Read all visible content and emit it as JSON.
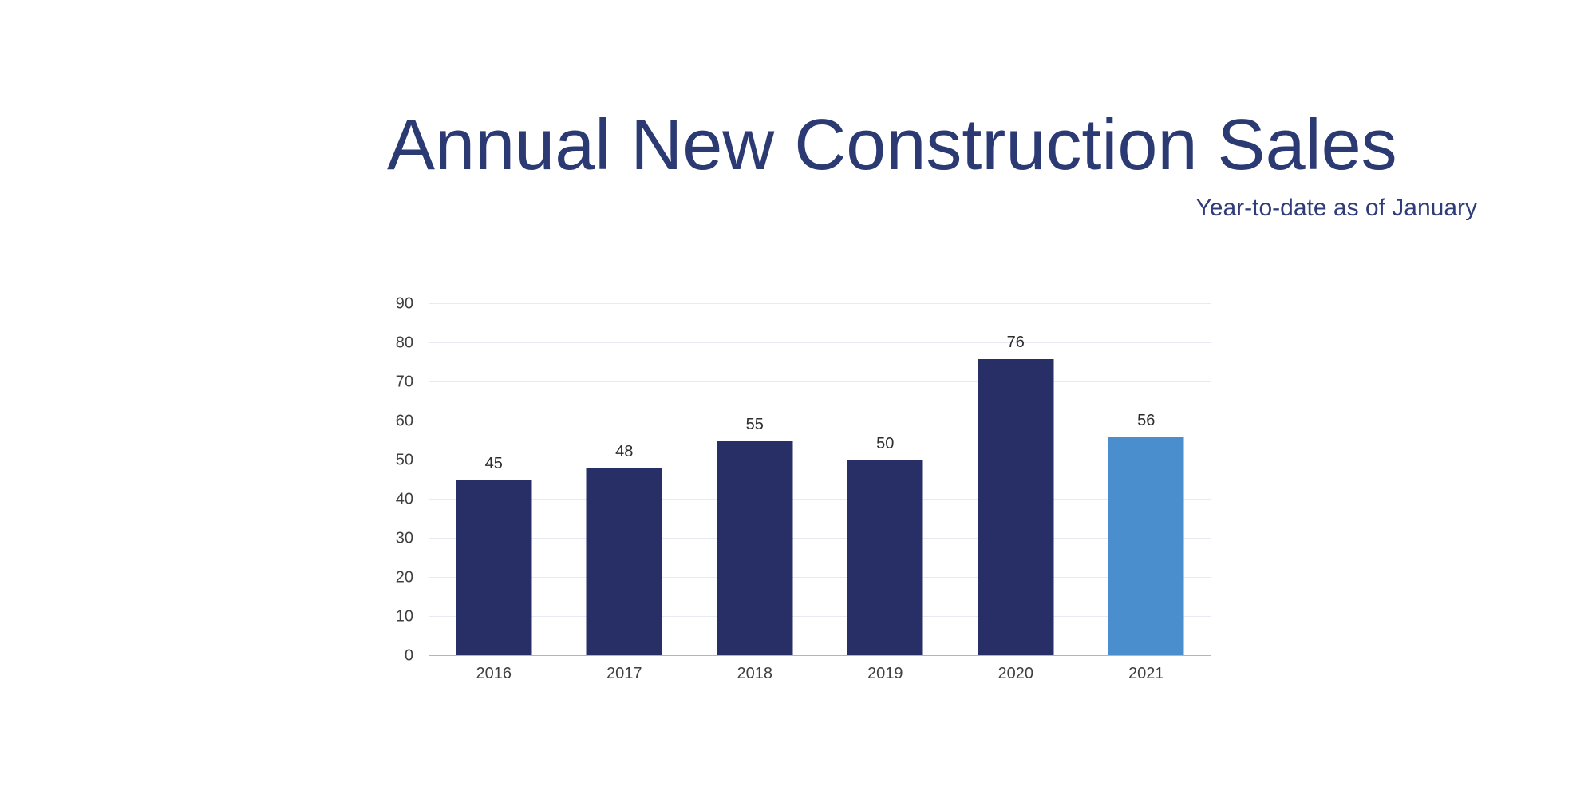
{
  "header": {
    "title": "Annual New Construction Sales",
    "subtitle": "Year-to-date as of January"
  },
  "chart_data": {
    "type": "bar",
    "title": "Annual New Construction Sales",
    "subtitle": "Year-to-date as of January",
    "categories": [
      "2016",
      "2017",
      "2018",
      "2019",
      "2020",
      "2021"
    ],
    "values": [
      45,
      48,
      55,
      50,
      76,
      56
    ],
    "data_labels": [
      45,
      48,
      55,
      50,
      76,
      56
    ],
    "bar_colors": [
      "#272f66",
      "#272f66",
      "#272f66",
      "#272f66",
      "#272f66",
      "#4a8ecd"
    ],
    "highlight_index": 5,
    "xlabel": "",
    "ylabel": "",
    "ylim": [
      0,
      90
    ],
    "y_ticks": [
      0,
      10,
      20,
      30,
      40,
      50,
      60,
      70,
      80,
      90
    ],
    "grid": "horizontal",
    "legend": "none"
  },
  "colors": {
    "title_text": "#2b3a73",
    "subtitle_text": "#2f3c78",
    "bar_primary": "#272f66",
    "bar_highlight": "#4a8ecd",
    "gridline": "#e7eaf2",
    "axis_line": "#b4b4bc",
    "tick_text": "#3f3f3f",
    "background": "#ffffff"
  }
}
